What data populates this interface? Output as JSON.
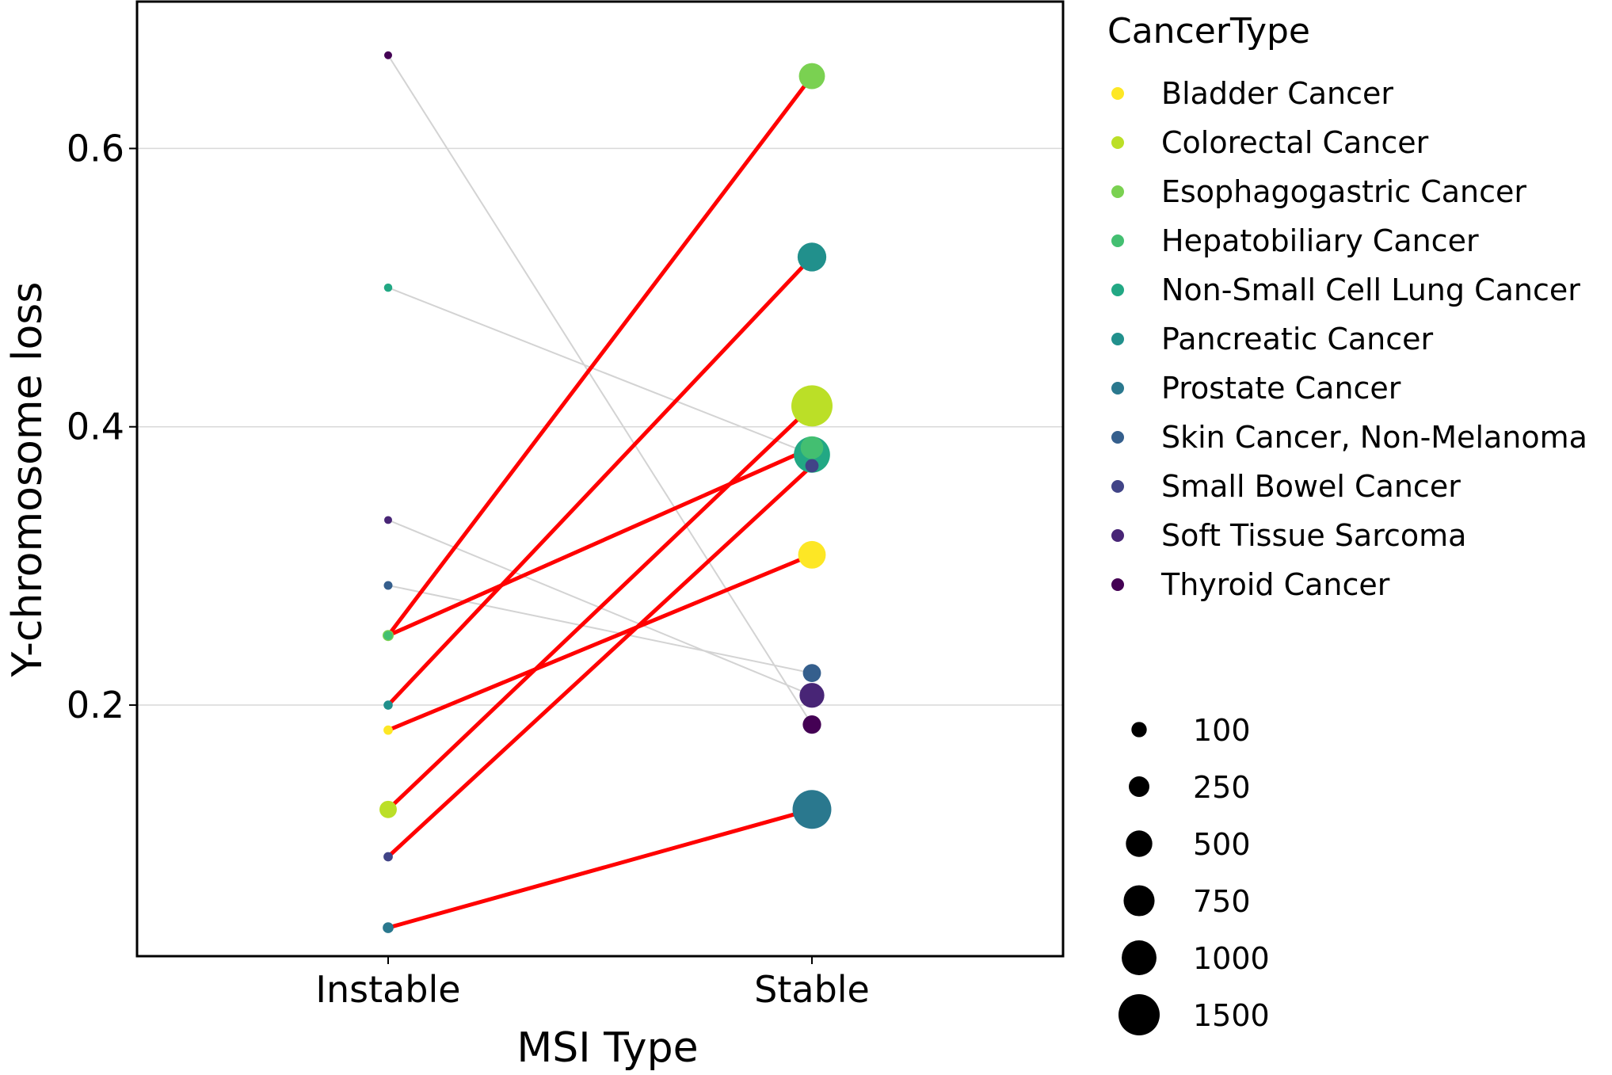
{
  "chart_data": {
    "type": "scatter",
    "xlabel": "MSI Type",
    "ylabel": "Y-chromosome loss",
    "categories": [
      "Instable",
      "Stable"
    ],
    "y_ticks": [
      "0.2",
      "0.4",
      "0.6"
    ],
    "ylim": [
      0.015,
      0.705
    ],
    "grid": "horizontal major",
    "legend_title": "CancerType",
    "legend_placement": "right",
    "cancer_types": [
      {
        "name": "Bladder Cancer",
        "color": "#FDE725"
      },
      {
        "name": "Colorectal Cancer",
        "color": "#BBDF27"
      },
      {
        "name": "Esophagogastric Cancer",
        "color": "#7AD151"
      },
      {
        "name": "Hepatobiliary Cancer",
        "color": "#43BF71"
      },
      {
        "name": "Non-Small Cell Lung Cancer",
        "color": "#22A884"
      },
      {
        "name": "Pancreatic Cancer",
        "color": "#21908C"
      },
      {
        "name": "Prostate Cancer",
        "color": "#2A788E"
      },
      {
        "name": "Skin Cancer, Non-Melanoma",
        "color": "#355F8D"
      },
      {
        "name": "Small Bowel Cancer",
        "color": "#414487"
      },
      {
        "name": "Soft Tissue Sarcoma",
        "color": "#482576"
      },
      {
        "name": "Thyroid Cancer",
        "color": "#440154"
      }
    ],
    "size_legend": [
      "100",
      "250",
      "500",
      "750",
      "1000",
      "1500"
    ],
    "size_values": [
      100,
      250,
      500,
      750,
      1000,
      1500
    ],
    "points": [
      {
        "type": "Thyroid Cancer",
        "instable": 0.667,
        "stable": 0.186,
        "n_instable": 3,
        "n_stable": 180,
        "line": "grey"
      },
      {
        "type": "Non-Small Cell Lung Cancer",
        "instable": 0.5,
        "stable": 0.38,
        "n_instable": 5,
        "n_stable": 1100,
        "line": "grey"
      },
      {
        "type": "Soft Tissue Sarcoma",
        "instable": 0.333,
        "stable": 0.207,
        "n_instable": 3,
        "n_stable": 420,
        "line": "grey"
      },
      {
        "type": "Skin Cancer, Non-Melanoma",
        "instable": 0.286,
        "stable": 0.223,
        "n_instable": 7,
        "n_stable": 170,
        "line": "grey"
      },
      {
        "type": "Esophagogastric Cancer",
        "instable": 0.25,
        "stable": 0.652,
        "n_instable": 28,
        "n_stable": 480,
        "line": "red"
      },
      {
        "type": "Hepatobiliary Cancer",
        "instable": 0.25,
        "stable": 0.385,
        "n_instable": 8,
        "n_stable": 330,
        "line": "red"
      },
      {
        "type": "Pancreatic Cancer",
        "instable": 0.2,
        "stable": 0.522,
        "n_instable": 10,
        "n_stable": 620,
        "line": "red"
      },
      {
        "type": "Bladder Cancer",
        "instable": 0.182,
        "stable": 0.308,
        "n_instable": 11,
        "n_stable": 560,
        "line": "red"
      },
      {
        "type": "Colorectal Cancer",
        "instable": 0.125,
        "stable": 0.415,
        "n_instable": 150,
        "n_stable": 1500,
        "line": "red"
      },
      {
        "type": "Small Bowel Cancer",
        "instable": 0.091,
        "stable": 0.372,
        "n_instable": 11,
        "n_stable": 60,
        "line": "red"
      },
      {
        "type": "Prostate Cancer",
        "instable": 0.04,
        "stable": 0.125,
        "n_instable": 25,
        "n_stable": 1300,
        "line": "red"
      }
    ]
  }
}
